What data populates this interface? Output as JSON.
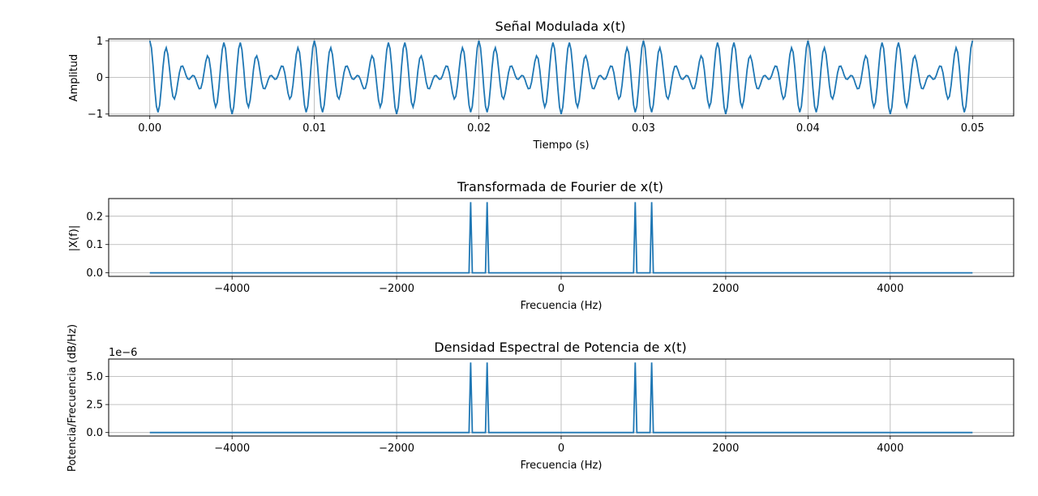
{
  "chart_data": [
    {
      "type": "line",
      "title": "Señal Modulada x(t)",
      "xlabel": "Tiempo (s)",
      "ylabel": "Amplitud",
      "xlim": [
        -0.0025,
        0.0525
      ],
      "ylim": [
        -1.05,
        1.05
      ],
      "xticks": [
        0.0,
        0.01,
        0.02,
        0.03,
        0.04,
        0.05
      ],
      "xtick_labels": [
        "0.00",
        "0.01",
        "0.02",
        "0.03",
        "0.04",
        "0.05"
      ],
      "yticks": [
        -1,
        0,
        1
      ],
      "ytick_labels": [
        "−1",
        "0",
        "1"
      ],
      "grid": true,
      "color": "#1f77b4",
      "series": [
        {
          "signal": "cos(2π·1000·t)·cos(2π·100·t)",
          "t_start": 0.0,
          "t_end": 0.05,
          "sample_interval": 0.0001
        }
      ]
    },
    {
      "type": "line",
      "title": "Transformada de Fourier de x(t)",
      "xlabel": "Frecuencia (Hz)",
      "ylabel": "|X(f)|",
      "xlim": [
        -5500,
        5500
      ],
      "ylim": [
        -0.0125,
        0.2625
      ],
      "xticks": [
        -4000,
        -2000,
        0,
        2000,
        4000
      ],
      "xtick_labels": [
        "−4000",
        "−2000",
        "0",
        "2000",
        "4000"
      ],
      "yticks": [
        0.0,
        0.1,
        0.2
      ],
      "ytick_labels": [
        "0.0",
        "0.1",
        "0.2"
      ],
      "grid": true,
      "color": "#1f77b4",
      "series": [
        {
          "x": [
            -5000,
            -1120,
            -1100,
            -1080,
            -920,
            -900,
            -880,
            880,
            900,
            920,
            1080,
            1100,
            1120,
            5000
          ],
          "y": [
            0,
            0,
            0.25,
            0,
            0,
            0.25,
            0,
            0,
            0.25,
            0,
            0,
            0.25,
            0,
            0
          ]
        }
      ]
    },
    {
      "type": "line",
      "title": "Densidad Espectral de Potencia de x(t)",
      "xlabel": "Frecuencia (Hz)",
      "ylabel": "Potencia/Frecuencia (dB/Hz)",
      "y_offset_label": "1e−6",
      "xlim": [
        -5500,
        5500
      ],
      "ylim": [
        -0.3125,
        6.5625
      ],
      "xticks": [
        -4000,
        -2000,
        0,
        2000,
        4000
      ],
      "xtick_labels": [
        "−4000",
        "−2000",
        "0",
        "2000",
        "4000"
      ],
      "yticks": [
        0.0,
        2.5,
        5.0
      ],
      "ytick_labels": [
        "0.0",
        "2.5",
        "5.0"
      ],
      "grid": true,
      "color": "#1f77b4",
      "series": [
        {
          "x": [
            -5000,
            -1120,
            -1100,
            -1080,
            -920,
            -900,
            -880,
            880,
            900,
            920,
            1080,
            1100,
            1120,
            5000
          ],
          "y": [
            0,
            0,
            6.25,
            0,
            0,
            6.25,
            0,
            0,
            6.25,
            0,
            0,
            6.25,
            0,
            0
          ]
        }
      ]
    }
  ]
}
